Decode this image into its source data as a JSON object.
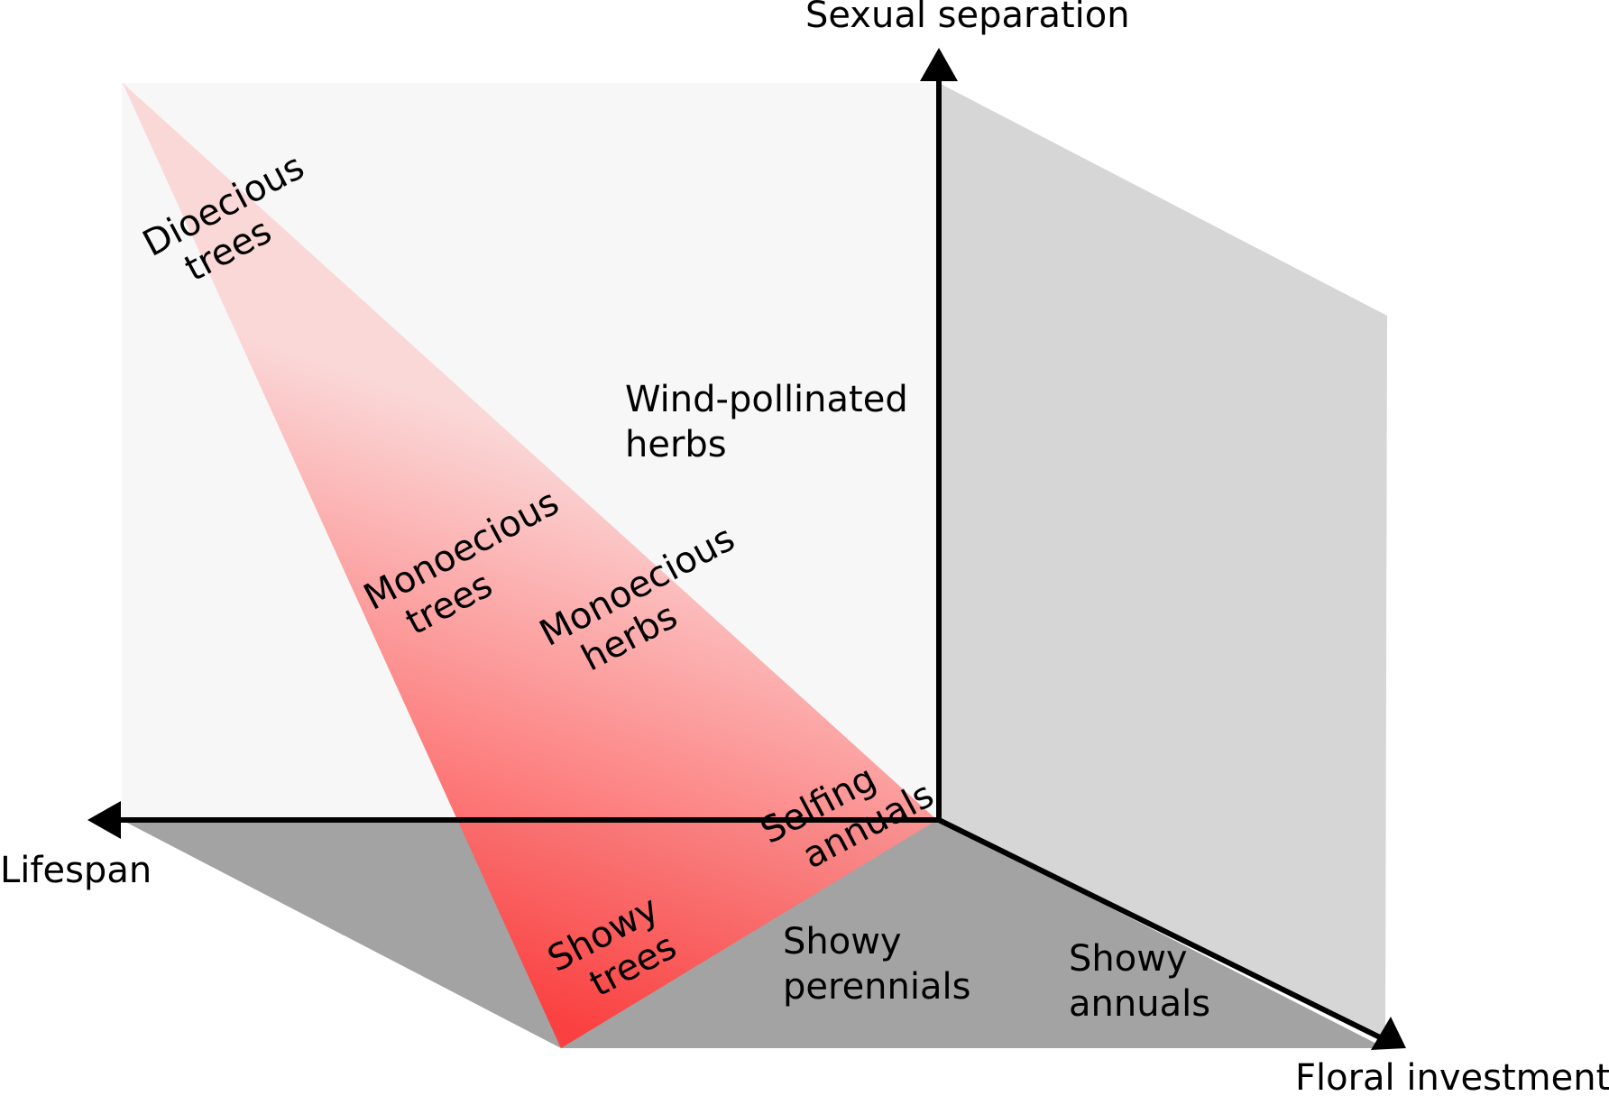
{
  "axes": {
    "vertical": "Sexual separation",
    "left": "Lifespan",
    "right": "Floral investment"
  },
  "labels": {
    "dioecious_trees": [
      "Dioecious",
      "trees"
    ],
    "wind_pollinated_herbs": [
      "Wind-pollinated",
      "herbs"
    ],
    "monoecious_trees": [
      "Monoecious",
      "trees"
    ],
    "monoecious_herbs": [
      "Monoecious",
      "herbs"
    ],
    "selfing_annuals": [
      "Selfing",
      "annuals"
    ],
    "showy_trees": [
      "Showy",
      "trees"
    ],
    "showy_perennials": [
      "Showy",
      "perennials"
    ],
    "showy_annuals": [
      "Showy",
      "annuals"
    ]
  },
  "colors": {
    "back_plane": "#f7f7f7",
    "side_plane": "#d6d6d6",
    "floor_plane": "#a3a3a3",
    "triangle_strong": "#ff3a3a",
    "triangle_light": "#fbd6d6",
    "axis": "#000000"
  }
}
